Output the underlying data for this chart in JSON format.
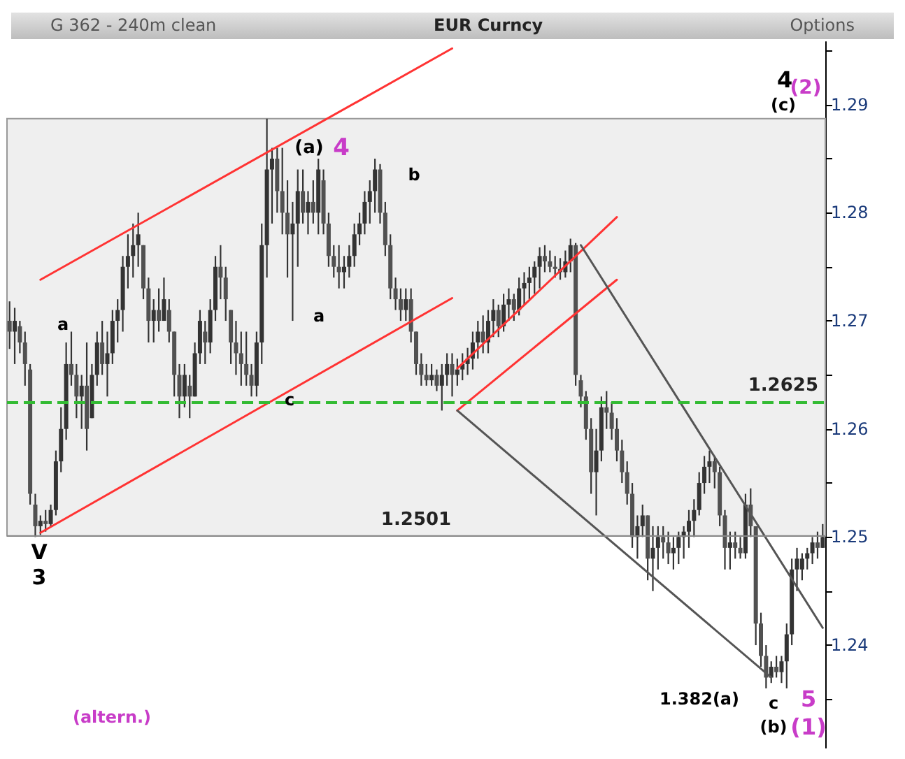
{
  "chart_data": {
    "type": "candlestick",
    "title": "EUR Curncy",
    "subtitle": "G 362 - 240m clean",
    "categories": [
      null,
      null,
      null,
      null,
      null,
      null,
      null,
      null,
      null,
      null,
      null,
      null,
      null,
      null,
      null,
      null,
      null,
      null,
      null,
      null,
      null,
      null,
      null,
      null,
      null,
      null,
      null,
      null,
      null,
      null,
      null,
      null,
      null,
      null,
      null,
      null,
      null,
      null,
      null,
      null,
      null,
      null,
      null,
      null,
      null,
      null,
      null,
      null,
      null,
      null,
      null,
      null,
      null,
      null,
      null,
      null,
      null,
      null,
      null,
      null,
      null,
      null,
      null,
      null,
      null,
      null,
      null,
      null,
      null,
      null,
      null,
      null,
      null,
      null,
      null,
      null,
      null,
      null,
      null,
      null,
      null,
      null,
      null,
      null,
      null,
      null,
      null,
      null,
      null,
      null,
      null,
      null,
      null,
      null,
      null,
      null,
      null,
      null,
      null,
      null,
      null,
      null,
      null,
      null,
      null,
      null,
      null,
      null,
      null,
      null,
      null,
      null,
      null,
      null,
      null,
      null,
      null,
      null,
      null,
      null,
      null,
      null,
      null,
      null,
      null,
      null,
      null,
      null,
      null,
      null,
      null,
      null,
      null,
      null,
      null,
      null,
      null,
      null,
      null,
      null,
      null,
      null,
      null,
      null,
      null,
      null,
      null,
      null,
      null,
      null,
      null,
      null,
      null,
      null,
      null,
      null,
      null,
      null,
      null
    ],
    "ohlc": [
      [
        1.27,
        1.2718,
        1.2674,
        1.269
      ],
      [
        1.269,
        1.2712,
        1.266,
        1.27
      ],
      [
        1.2695,
        1.27,
        1.267,
        1.268
      ],
      [
        1.268,
        1.269,
        1.264,
        1.266
      ],
      [
        1.2655,
        1.266,
        1.253,
        1.254
      ],
      [
        1.253,
        1.254,
        1.25,
        1.251
      ],
      [
        1.251,
        1.252,
        1.2502,
        1.2515
      ],
      [
        1.2515,
        1.2525,
        1.2505,
        1.2512
      ],
      [
        1.2512,
        1.253,
        1.251,
        1.2525
      ],
      [
        1.2525,
        1.258,
        1.252,
        1.257
      ],
      [
        1.257,
        1.262,
        1.256,
        1.26
      ],
      [
        1.26,
        1.268,
        1.259,
        1.266
      ],
      [
        1.266,
        1.269,
        1.264,
        1.265
      ],
      [
        1.265,
        1.266,
        1.261,
        1.263
      ],
      [
        1.263,
        1.265,
        1.26,
        1.264
      ],
      [
        1.264,
        1.268,
        1.258,
        1.26
      ],
      [
        1.261,
        1.266,
        1.261,
        1.265
      ],
      [
        1.265,
        1.269,
        1.264,
        1.268
      ],
      [
        1.268,
        1.27,
        1.265,
        1.266
      ],
      [
        1.266,
        1.269,
        1.263,
        1.267
      ],
      [
        1.267,
        1.271,
        1.266,
        1.27
      ],
      [
        1.27,
        1.272,
        1.268,
        1.271
      ],
      [
        1.271,
        1.276,
        1.269,
        1.275
      ],
      [
        1.275,
        1.278,
        1.273,
        1.276
      ],
      [
        1.276,
        1.279,
        1.274,
        1.277
      ],
      [
        1.277,
        1.28,
        1.275,
        1.278
      ],
      [
        1.277,
        1.277,
        1.272,
        1.273
      ],
      [
        1.273,
        1.274,
        1.268,
        1.27
      ],
      [
        1.27,
        1.272,
        1.268,
        1.271
      ],
      [
        1.271,
        1.273,
        1.269,
        1.27
      ],
      [
        1.27,
        1.274,
        1.27,
        1.272
      ],
      [
        1.271,
        1.272,
        1.268,
        1.269
      ],
      [
        1.269,
        1.269,
        1.263,
        1.265
      ],
      [
        1.265,
        1.266,
        1.261,
        1.263
      ],
      [
        1.263,
        1.266,
        1.262,
        1.265
      ],
      [
        1.264,
        1.265,
        1.261,
        1.263
      ],
      [
        1.263,
        1.268,
        1.263,
        1.267
      ],
      [
        1.267,
        1.271,
        1.266,
        1.27
      ],
      [
        1.269,
        1.27,
        1.266,
        1.268
      ],
      [
        1.268,
        1.272,
        1.267,
        1.271
      ],
      [
        1.271,
        1.276,
        1.27,
        1.275
      ],
      [
        1.275,
        1.277,
        1.272,
        1.274
      ],
      [
        1.274,
        1.275,
        1.27,
        1.272
      ],
      [
        1.271,
        1.271,
        1.266,
        1.268
      ],
      [
        1.268,
        1.27,
        1.265,
        1.267
      ],
      [
        1.267,
        1.269,
        1.264,
        1.266
      ],
      [
        1.266,
        1.269,
        1.264,
        1.265
      ],
      [
        1.265,
        1.266,
        1.263,
        1.264
      ],
      [
        1.264,
        1.269,
        1.263,
        1.268
      ],
      [
        1.268,
        1.279,
        1.266,
        1.277
      ],
      [
        1.277,
        1.2887,
        1.274,
        1.284
      ],
      [
        1.284,
        1.286,
        1.279,
        1.285
      ],
      [
        1.285,
        1.286,
        1.28,
        1.282
      ],
      [
        1.282,
        1.286,
        1.278,
        1.28
      ],
      [
        1.28,
        1.283,
        1.274,
        1.278
      ],
      [
        1.278,
        1.281,
        1.27,
        1.279
      ],
      [
        1.279,
        1.284,
        1.275,
        1.282
      ],
      [
        1.282,
        1.284,
        1.279,
        1.28
      ],
      [
        1.28,
        1.282,
        1.278,
        1.281
      ],
      [
        1.281,
        1.283,
        1.279,
        1.28
      ],
      [
        1.28,
        1.285,
        1.278,
        1.284
      ],
      [
        1.283,
        1.284,
        1.278,
        1.279
      ],
      [
        1.279,
        1.28,
        1.275,
        1.276
      ],
      [
        1.276,
        1.277,
        1.274,
        1.275
      ],
      [
        1.275,
        1.277,
        1.273,
        1.2745
      ],
      [
        1.2745,
        1.276,
        1.273,
        1.275
      ],
      [
        1.275,
        1.277,
        1.274,
        1.276
      ],
      [
        1.276,
        1.279,
        1.275,
        1.278
      ],
      [
        1.278,
        1.28,
        1.277,
        1.279
      ],
      [
        1.279,
        1.282,
        1.278,
        1.281
      ],
      [
        1.281,
        1.283,
        1.279,
        1.282
      ],
      [
        1.282,
        1.285,
        1.28,
        1.284
      ],
      [
        1.284,
        1.2845,
        1.279,
        1.28
      ],
      [
        1.28,
        1.281,
        1.276,
        1.277
      ],
      [
        1.277,
        1.278,
        1.272,
        1.273
      ],
      [
        1.273,
        1.274,
        1.271,
        1.272
      ],
      [
        1.272,
        1.273,
        1.27,
        1.271
      ],
      [
        1.271,
        1.273,
        1.27,
        1.272
      ],
      [
        1.272,
        1.273,
        1.268,
        1.269
      ],
      [
        1.269,
        1.269,
        1.265,
        1.266
      ],
      [
        1.266,
        1.267,
        1.264,
        1.265
      ],
      [
        1.265,
        1.266,
        1.264,
        1.2645
      ],
      [
        1.2645,
        1.266,
        1.264,
        1.265
      ],
      [
        1.265,
        1.2655,
        1.2635,
        1.264
      ],
      [
        1.264,
        1.266,
        1.2617,
        1.265
      ],
      [
        1.265,
        1.267,
        1.264,
        1.266
      ],
      [
        1.266,
        1.267,
        1.263,
        1.265
      ],
      [
        1.265,
        1.2665,
        1.264,
        1.2655
      ],
      [
        1.2655,
        1.267,
        1.2645,
        1.266
      ],
      [
        1.266,
        1.2675,
        1.265,
        1.2665
      ],
      [
        1.2665,
        1.269,
        1.2655,
        1.268
      ],
      [
        1.268,
        1.27,
        1.2665,
        1.269
      ],
      [
        1.269,
        1.2705,
        1.267,
        1.268
      ],
      [
        1.268,
        1.271,
        1.267,
        1.27
      ],
      [
        1.27,
        1.272,
        1.2685,
        1.271
      ],
      [
        1.271,
        1.2715,
        1.2685,
        1.2695
      ],
      [
        1.2695,
        1.2725,
        1.269,
        1.2715
      ],
      [
        1.2715,
        1.273,
        1.27,
        1.272
      ],
      [
        1.272,
        1.2725,
        1.27,
        1.271
      ],
      [
        1.271,
        1.274,
        1.2705,
        1.273
      ],
      [
        1.273,
        1.2745,
        1.2715,
        1.2735
      ],
      [
        1.2735,
        1.275,
        1.272,
        1.274
      ],
      [
        1.274,
        1.2755,
        1.2725,
        1.275
      ],
      [
        1.275,
        1.2768,
        1.273,
        1.276
      ],
      [
        1.276,
        1.277,
        1.2745,
        1.2755
      ],
      [
        1.2755,
        1.2765,
        1.2745,
        1.275
      ],
      [
        1.275,
        1.276,
        1.274,
        1.2748
      ],
      [
        1.2748,
        1.2758,
        1.2738,
        1.2745
      ],
      [
        1.2745,
        1.2765,
        1.274,
        1.2755
      ],
      [
        1.2755,
        1.2776,
        1.2745,
        1.277
      ],
      [
        1.277,
        1.2772,
        1.264,
        1.265
      ],
      [
        1.2645,
        1.265,
        1.262,
        1.263
      ],
      [
        1.263,
        1.2635,
        1.259,
        1.26
      ],
      [
        1.26,
        1.261,
        1.254,
        1.256
      ],
      [
        1.256,
        1.26,
        1.252,
        1.258
      ],
      [
        1.258,
        1.263,
        1.257,
        1.262
      ],
      [
        1.262,
        1.2635,
        1.26,
        1.2615
      ],
      [
        1.2615,
        1.2625,
        1.259,
        1.26
      ],
      [
        1.26,
        1.261,
        1.257,
        1.258
      ],
      [
        1.258,
        1.259,
        1.255,
        1.256
      ],
      [
        1.256,
        1.257,
        1.253,
        1.254
      ],
      [
        1.254,
        1.255,
        1.249,
        1.25
      ],
      [
        1.25,
        1.252,
        1.248,
        1.251
      ],
      [
        1.251,
        1.253,
        1.25,
        1.252
      ],
      [
        1.252,
        1.252,
        1.246,
        1.248
      ],
      [
        1.248,
        1.251,
        1.245,
        1.249
      ],
      [
        1.249,
        1.251,
        1.247,
        1.25
      ],
      [
        1.25,
        1.251,
        1.248,
        1.2495
      ],
      [
        1.2495,
        1.2505,
        1.2475,
        1.2485
      ],
      [
        1.2485,
        1.25,
        1.247,
        1.249
      ],
      [
        1.249,
        1.2505,
        1.2475,
        1.25
      ],
      [
        1.25,
        1.251,
        1.248,
        1.2505
      ],
      [
        1.2505,
        1.2525,
        1.249,
        1.2515
      ],
      [
        1.2515,
        1.2535,
        1.25,
        1.2525
      ],
      [
        1.2525,
        1.256,
        1.252,
        1.255
      ],
      [
        1.255,
        1.2575,
        1.254,
        1.2565
      ],
      [
        1.2565,
        1.258,
        1.255,
        1.257
      ],
      [
        1.257,
        1.2575,
        1.2545,
        1.256
      ],
      [
        1.256,
        1.2565,
        1.251,
        1.252
      ],
      [
        1.252,
        1.2525,
        1.247,
        1.249
      ],
      [
        1.249,
        1.2505,
        1.247,
        1.2495
      ],
      [
        1.2495,
        1.2505,
        1.248,
        1.249
      ],
      [
        1.249,
        1.25,
        1.248,
        1.2485
      ],
      [
        1.2485,
        1.254,
        1.248,
        1.253
      ],
      [
        1.253,
        1.2545,
        1.25,
        1.251
      ],
      [
        1.251,
        1.251,
        1.24,
        1.242
      ],
      [
        1.242,
        1.243,
        1.238,
        1.239
      ],
      [
        1.239,
        1.24,
        1.236,
        1.237
      ],
      [
        1.237,
        1.2385,
        1.2365,
        1.238
      ],
      [
        1.238,
        1.239,
        1.237,
        1.2375
      ],
      [
        1.2375,
        1.239,
        1.2365,
        1.2385
      ],
      [
        1.2385,
        1.242,
        1.236,
        1.241
      ],
      [
        1.241,
        1.248,
        1.24,
        1.247
      ],
      [
        1.247,
        1.249,
        1.245,
        1.248
      ],
      [
        1.247,
        1.2485,
        1.246,
        1.248
      ],
      [
        1.248,
        1.249,
        1.247,
        1.2485
      ],
      [
        1.2485,
        1.25,
        1.2475,
        1.2495
      ],
      [
        1.2495,
        1.2505,
        1.248,
        1.249
      ],
      [
        1.249,
        1.2512,
        1.249,
        1.25
      ]
    ],
    "series": [
      {
        "type": "line",
        "color": "#ff3333",
        "values": [
          null,
          null,
          null,
          null,
          null,
          null,
          1.2504,
          null,
          null,
          null,
          null,
          null,
          null,
          null,
          null,
          null,
          null,
          null,
          null,
          null,
          null,
          null,
          null,
          null,
          null,
          null,
          null,
          null,
          null,
          null,
          null,
          null,
          null,
          null,
          null,
          null,
          null,
          null,
          null,
          null,
          null,
          null,
          null,
          null,
          null,
          null,
          null,
          null,
          null,
          null,
          null,
          null,
          null,
          null,
          null,
          null,
          null,
          null,
          null,
          null,
          null,
          null,
          null,
          null,
          null,
          null,
          null,
          null,
          null,
          null,
          null,
          null,
          null,
          null,
          null,
          null,
          null,
          null,
          null,
          null,
          null,
          null,
          null,
          null,
          null,
          null,
          1.2721,
          null,
          null,
          null,
          null,
          null,
          null,
          null,
          null,
          null,
          null,
          null,
          null,
          null,
          null,
          null,
          null,
          null,
          null,
          null,
          null,
          null,
          null,
          null,
          null,
          null,
          null,
          null,
          null,
          null,
          null,
          null,
          null,
          null,
          null,
          null,
          null,
          null,
          null,
          null,
          null,
          null,
          null,
          null,
          null,
          null,
          null,
          null,
          null,
          null,
          null,
          null,
          null,
          null,
          null,
          null,
          null,
          null,
          null,
          null,
          null,
          null,
          null,
          null,
          null,
          null,
          null,
          null,
          null,
          null,
          null,
          null,
          null
        ]
      },
      {
        "type": "line",
        "color": "#ff3333",
        "values": [
          null,
          null,
          null,
          null,
          null,
          null,
          1.2738,
          null,
          null,
          null,
          null,
          null,
          null,
          null,
          null,
          null,
          null,
          null,
          null,
          null,
          null,
          null,
          null,
          null,
          null,
          null,
          null,
          null,
          null,
          null,
          null,
          null,
          null,
          null,
          null,
          null,
          null,
          null,
          null,
          null,
          null,
          null,
          null,
          null,
          null,
          null,
          null,
          null,
          null,
          null,
          null,
          null,
          null,
          null,
          null,
          null,
          null,
          null,
          null,
          null,
          null,
          null,
          null,
          null,
          null,
          null,
          null,
          null,
          null,
          null,
          null,
          null,
          null,
          null,
          null,
          null,
          null,
          null,
          null,
          null,
          null,
          null,
          null,
          null,
          null,
          null,
          1.2952,
          null,
          null,
          null,
          null,
          null,
          null,
          null,
          null,
          null,
          null,
          null,
          null,
          null,
          null,
          null,
          null,
          null,
          null,
          null,
          null,
          null,
          null,
          null,
          null,
          null,
          null,
          null,
          null,
          null,
          null,
          null,
          null,
          null,
          null,
          null,
          null,
          null,
          null,
          null,
          null,
          null,
          null,
          null,
          null,
          null,
          null,
          null,
          null,
          null,
          null,
          null,
          null,
          null,
          null,
          null,
          null,
          null,
          null,
          null,
          null,
          null,
          null,
          null,
          null,
          null,
          null,
          null,
          null,
          null,
          null,
          null,
          null
        ]
      },
      {
        "type": "line",
        "color": "#ff3333",
        "values": [
          null,
          null,
          null,
          null,
          null,
          null,
          null,
          null,
          null,
          null,
          null,
          null,
          null,
          null,
          null,
          null,
          null,
          null,
          null,
          null,
          null,
          null,
          null,
          null,
          null,
          null,
          null,
          null,
          null,
          null,
          null,
          null,
          null,
          null,
          null,
          null,
          null,
          null,
          null,
          null,
          null,
          null,
          null,
          null,
          null,
          null,
          null,
          null,
          null,
          null,
          null,
          null,
          null,
          null,
          null,
          null,
          null,
          null,
          null,
          null,
          null,
          null,
          null,
          null,
          null,
          null,
          null,
          null,
          null,
          null,
          null,
          null,
          null,
          null,
          null,
          null,
          null,
          null,
          null,
          null,
          null,
          null,
          null,
          null,
          null,
          null,
          null,
          1.2617,
          null,
          null,
          null,
          null,
          null,
          null,
          null,
          null,
          null,
          null,
          null,
          null,
          null,
          null,
          null,
          null,
          null,
          null,
          null,
          null,
          null,
          null,
          null,
          null,
          null,
          null,
          null,
          null,
          null,
          null,
          1.2738,
          null,
          null,
          null,
          null,
          null,
          null,
          null,
          null,
          null,
          null,
          null,
          null,
          null,
          null,
          null,
          null,
          null,
          null,
          null,
          null,
          null,
          null,
          null,
          null,
          null,
          null,
          null,
          null,
          null,
          null,
          null,
          null,
          null,
          null,
          null,
          null,
          null,
          null,
          null,
          null
        ]
      },
      {
        "type": "line",
        "color": "#ff3333",
        "values": [
          null,
          null,
          null,
          null,
          null,
          null,
          null,
          null,
          null,
          null,
          null,
          null,
          null,
          null,
          null,
          null,
          null,
          null,
          null,
          null,
          null,
          null,
          null,
          null,
          null,
          null,
          null,
          null,
          null,
          null,
          null,
          null,
          null,
          null,
          null,
          null,
          null,
          null,
          null,
          null,
          null,
          null,
          null,
          null,
          null,
          null,
          null,
          null,
          null,
          null,
          null,
          null,
          null,
          null,
          null,
          null,
          null,
          null,
          null,
          null,
          null,
          null,
          null,
          null,
          null,
          null,
          null,
          null,
          null,
          null,
          null,
          null,
          null,
          null,
          null,
          null,
          null,
          null,
          null,
          null,
          null,
          null,
          null,
          null,
          null,
          null,
          null,
          1.2656,
          null,
          null,
          null,
          null,
          null,
          null,
          null,
          null,
          null,
          null,
          null,
          null,
          null,
          null,
          null,
          null,
          null,
          null,
          null,
          null,
          null,
          null,
          null,
          null,
          null,
          null,
          null,
          null,
          null,
          null,
          1.2796,
          null,
          null,
          null,
          null,
          null,
          null,
          null,
          null,
          null,
          null,
          null,
          null,
          null,
          null,
          null,
          null,
          null,
          null,
          null,
          null,
          null,
          null,
          null,
          null,
          null,
          null,
          null,
          null,
          null,
          null,
          null,
          null,
          null,
          null,
          null,
          null,
          null,
          null,
          null,
          null
        ]
      },
      {
        "type": "line",
        "color": "#555555",
        "values": [
          null,
          null,
          null,
          null,
          null,
          null,
          null,
          null,
          null,
          null,
          null,
          null,
          null,
          null,
          null,
          null,
          null,
          null,
          null,
          null,
          null,
          null,
          null,
          null,
          null,
          null,
          null,
          null,
          null,
          null,
          null,
          null,
          null,
          null,
          null,
          null,
          null,
          null,
          null,
          null,
          null,
          null,
          null,
          null,
          null,
          null,
          null,
          null,
          null,
          null,
          null,
          null,
          null,
          null,
          null,
          null,
          null,
          null,
          null,
          null,
          null,
          null,
          null,
          null,
          null,
          null,
          null,
          null,
          null,
          null,
          null,
          null,
          null,
          null,
          null,
          null,
          null,
          null,
          null,
          null,
          null,
          null,
          null,
          null,
          null,
          null,
          null,
          null,
          null,
          null,
          null,
          null,
          null,
          null,
          null,
          null,
          null,
          null,
          null,
          null,
          null,
          null,
          null,
          null,
          null,
          null,
          null,
          null,
          null,
          null,
          null,
          1.277,
          null,
          null,
          null,
          null,
          null,
          null,
          null,
          null,
          null,
          null,
          null,
          null,
          null,
          null,
          null,
          null,
          null,
          null,
          null,
          null,
          null,
          null,
          null,
          null,
          null,
          null,
          null,
          null,
          null,
          null,
          null,
          null,
          null,
          null,
          null,
          null,
          null,
          null,
          null,
          null,
          null,
          null,
          null,
          null,
          null,
          null,
          1.2416
        ]
      },
      {
        "type": "line",
        "color": "#555555",
        "values": [
          null,
          null,
          null,
          null,
          null,
          null,
          null,
          null,
          null,
          null,
          null,
          null,
          null,
          null,
          null,
          null,
          null,
          null,
          null,
          null,
          null,
          null,
          null,
          null,
          null,
          null,
          null,
          null,
          null,
          null,
          null,
          null,
          null,
          null,
          null,
          null,
          null,
          null,
          null,
          null,
          null,
          null,
          null,
          null,
          null,
          null,
          null,
          null,
          null,
          null,
          null,
          null,
          null,
          null,
          null,
          null,
          null,
          null,
          null,
          null,
          null,
          null,
          null,
          null,
          null,
          null,
          null,
          null,
          null,
          null,
          null,
          null,
          null,
          null,
          null,
          null,
          null,
          null,
          null,
          null,
          null,
          null,
          null,
          null,
          null,
          null,
          null,
          1.2617,
          null,
          null,
          null,
          null,
          null,
          null,
          null,
          null,
          null,
          null,
          null,
          null,
          null,
          null,
          null,
          null,
          null,
          null,
          null,
          null,
          null,
          null,
          null,
          null,
          null,
          null,
          null,
          null,
          null,
          null,
          null,
          null,
          null,
          null,
          null,
          null,
          null,
          null,
          null,
          null,
          null,
          null,
          null,
          null,
          null,
          null,
          null,
          null,
          null,
          null,
          null,
          null,
          null,
          null,
          null,
          null,
          null,
          null,
          null,
          null,
          1.237,
          null,
          null,
          null,
          null,
          null,
          null,
          null,
          null,
          null,
          null
        ]
      }
    ],
    "ylim": [
      1.2305,
      1.2958
    ],
    "yticks": [
      {
        "value": 1.235,
        "label": null
      },
      1.24,
      {
        "value": 1.245,
        "label": null
      },
      1.25,
      {
        "value": 1.255,
        "label": null
      },
      1.26,
      {
        "value": 1.265,
        "label": null
      },
      1.27,
      {
        "value": 1.275,
        "label": null
      },
      1.28,
      {
        "value": 1.285,
        "label": null
      },
      1.29,
      {
        "value": 1.295,
        "label": null
      }
    ],
    "bands": [
      {
        "axis": "y",
        "from": 1.2501,
        "to": 1.2887,
        "color": "#efefef"
      }
    ],
    "ref_lines": [
      {
        "axis": "y",
        "value": 1.2501,
        "label": "1.2501",
        "color": "#888888"
      },
      {
        "axis": "y",
        "value": 1.2625,
        "label": "1.2625",
        "color": "#33bb33",
        "line_style": "dashed"
      }
    ],
    "annotations": [
      "a",
      "(a)",
      "4",
      "b",
      "a",
      "c",
      "V",
      "3",
      "1.382(a)",
      "c",
      "(b)",
      "5",
      "(1)",
      "4",
      "(c)",
      "(2)",
      "(altern.)",
      "Options"
    ]
  }
}
